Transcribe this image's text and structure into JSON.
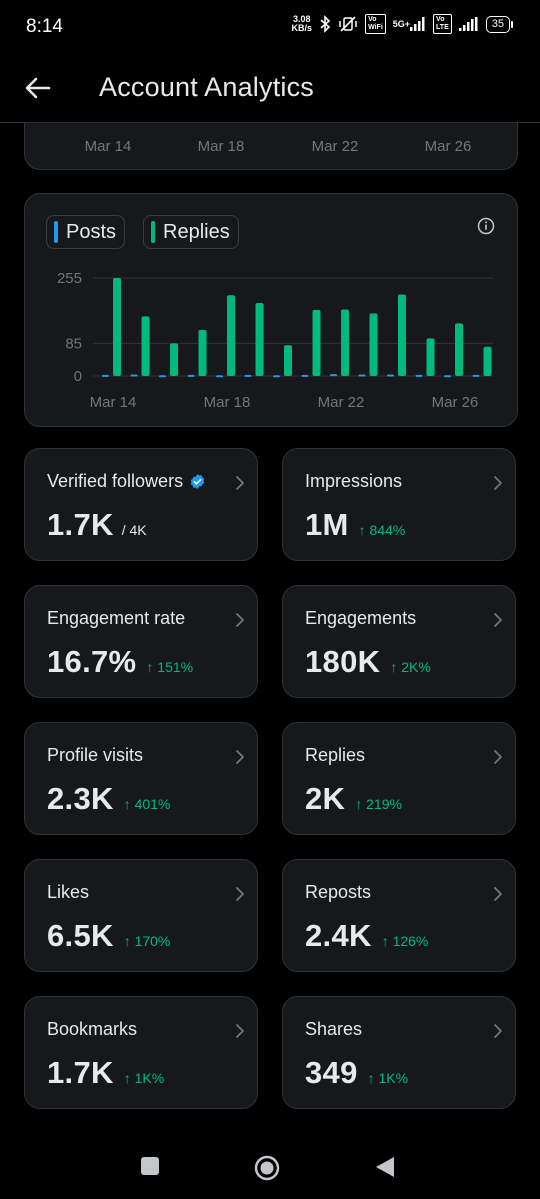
{
  "status": {
    "time": "8:14",
    "net_speed_value": "3.08",
    "net_speed_unit": "KB/s",
    "vo_label_1": "Vo\nWiFi",
    "fiveg_label": "5G+",
    "vo_label_2": "Vo\nLTE",
    "battery": "35"
  },
  "header": {
    "title": "Account Analytics"
  },
  "top_card": {
    "ticks": [
      "Mar 14",
      "Mar 18",
      "Mar 22",
      "Mar 26"
    ]
  },
  "chart": {
    "legend": [
      {
        "label": "Posts",
        "color": "#1d9bf0"
      },
      {
        "label": "Replies",
        "color": "#00ba7c"
      }
    ]
  },
  "chart_data": {
    "type": "bar",
    "categories": [
      "Mar 14",
      "Mar 15",
      "Mar 16",
      "Mar 17",
      "Mar 18",
      "Mar 19",
      "Mar 20",
      "Mar 21",
      "Mar 22",
      "Mar 23",
      "Mar 24",
      "Mar 25",
      "Mar 26",
      "Mar 27"
    ],
    "x_tick_labels": [
      "Mar 14",
      "Mar 18",
      "Mar 22",
      "Mar 26"
    ],
    "y_ticks": [
      0,
      85,
      255
    ],
    "ylim": [
      0,
      255
    ],
    "grid": true,
    "legend_position": "top-left",
    "series": [
      {
        "name": "Posts",
        "color": "#1d9bf0",
        "values": [
          3,
          4,
          2,
          3,
          2,
          3,
          2,
          3,
          5,
          4,
          4,
          3,
          2,
          3
        ]
      },
      {
        "name": "Replies",
        "color": "#00ba7c",
        "values": [
          255,
          155,
          85,
          120,
          210,
          190,
          80,
          172,
          173,
          163,
          212,
          98,
          137,
          76
        ]
      }
    ]
  },
  "metrics": [
    {
      "label": "Verified followers",
      "value": "1.7K",
      "sub": "/ 4K",
      "change": "",
      "verified": true
    },
    {
      "label": "Impressions",
      "value": "1M",
      "sub": "",
      "change": "↑ 844%"
    },
    {
      "label": "Engagement rate",
      "value": "16.7%",
      "sub": "",
      "change": "↑ 151%"
    },
    {
      "label": "Engagements",
      "value": "180K",
      "sub": "",
      "change": "↑ 2K%"
    },
    {
      "label": "Profile visits",
      "value": "2.3K",
      "sub": "",
      "change": "↑ 401%"
    },
    {
      "label": "Replies",
      "value": "2K",
      "sub": "",
      "change": "↑ 219%"
    },
    {
      "label": "Likes",
      "value": "6.5K",
      "sub": "",
      "change": "↑ 170%"
    },
    {
      "label": "Reposts",
      "value": "2.4K",
      "sub": "",
      "change": "↑ 126%"
    },
    {
      "label": "Bookmarks",
      "value": "1.7K",
      "sub": "",
      "change": "↑ 1K%"
    },
    {
      "label": "Shares",
      "value": "349",
      "sub": "",
      "change": "↑ 1K%"
    }
  ],
  "colors": {
    "background": "#000000",
    "card": "#16181c",
    "border": "#2f3336",
    "up": "#00ba7c",
    "posts": "#1d9bf0",
    "replies": "#00ba7c",
    "muted": "#71767b"
  },
  "navbar": {
    "icons": [
      "recents-square-icon",
      "home-circle-icon",
      "back-triangle-icon"
    ]
  }
}
